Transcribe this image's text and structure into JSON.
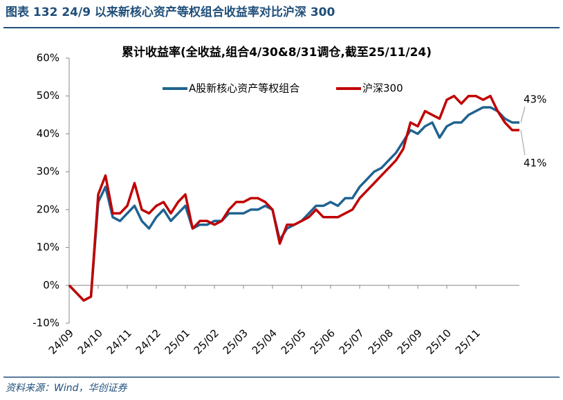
{
  "header": {
    "title": "图表 132    24/9 以来新核心资产等权组合收益率对比沪深 300"
  },
  "chart_data": {
    "type": "line",
    "title": "累计收益率(全收益,组合4/30&8/31调仓,截至25/11/24)",
    "categories": [
      "24/09",
      null,
      null,
      null,
      "24/10",
      null,
      null,
      null,
      "24/11",
      null,
      null,
      null,
      "24/12",
      null,
      null,
      null,
      "25/01",
      null,
      null,
      null,
      "25/02",
      null,
      null,
      null,
      "25/03",
      null,
      null,
      null,
      "25/04",
      null,
      null,
      null,
      "25/05",
      null,
      null,
      null,
      "25/06",
      null,
      null,
      null,
      "25/07",
      null,
      null,
      null,
      "25/08",
      null,
      null,
      null,
      "25/09",
      null,
      null,
      null,
      "25/10",
      null,
      null,
      null,
      "25/11",
      null,
      null,
      null,
      null,
      null,
      null
    ],
    "series": [
      {
        "name": "A股新核心资产等权组合",
        "color": "#1f6391",
        "end_label": "43%",
        "values": [
          0,
          -2,
          -4,
          -3,
          22,
          26,
          18,
          17,
          19,
          21,
          17,
          15,
          18,
          20,
          17,
          19,
          21,
          15,
          16,
          16,
          17,
          17,
          19,
          19,
          19,
          20,
          20,
          21,
          20,
          12,
          15,
          16,
          17,
          19,
          21,
          21,
          22,
          21,
          23,
          23,
          26,
          28,
          30,
          31,
          33,
          35,
          38,
          41,
          40,
          42,
          43,
          39,
          42,
          43,
          43,
          45,
          46,
          47,
          47,
          46,
          44,
          43,
          43
        ]
      },
      {
        "name": "沪深300",
        "color": "#c00000",
        "end_label": "41%",
        "values": [
          0,
          -2,
          -4,
          -3,
          24,
          29,
          19,
          19,
          21,
          27,
          20,
          19,
          21,
          22,
          19,
          22,
          24,
          15,
          17,
          17,
          16,
          17,
          20,
          22,
          22,
          23,
          23,
          22,
          20,
          11,
          16,
          16,
          17,
          18,
          20,
          18,
          18,
          18,
          19,
          20,
          23,
          25,
          27,
          29,
          31,
          33,
          36,
          43,
          42,
          46,
          45,
          44,
          49,
          50,
          48,
          50,
          50,
          49,
          50,
          46,
          43,
          41,
          41
        ]
      }
    ],
    "ylim": [
      -10,
      60
    ],
    "yticks": [
      {
        "value": -10,
        "label": "-10%"
      },
      {
        "value": 0,
        "label": "0%"
      },
      {
        "value": 10,
        "label": "10%"
      },
      {
        "value": 20,
        "label": "20%"
      },
      {
        "value": 30,
        "label": "30%"
      },
      {
        "value": 40,
        "label": "40%"
      },
      {
        "value": 50,
        "label": "50%"
      },
      {
        "value": 60,
        "label": "60%"
      }
    ],
    "legend": "top"
  },
  "footer": {
    "source": "资料来源：Wind，华创证券"
  }
}
